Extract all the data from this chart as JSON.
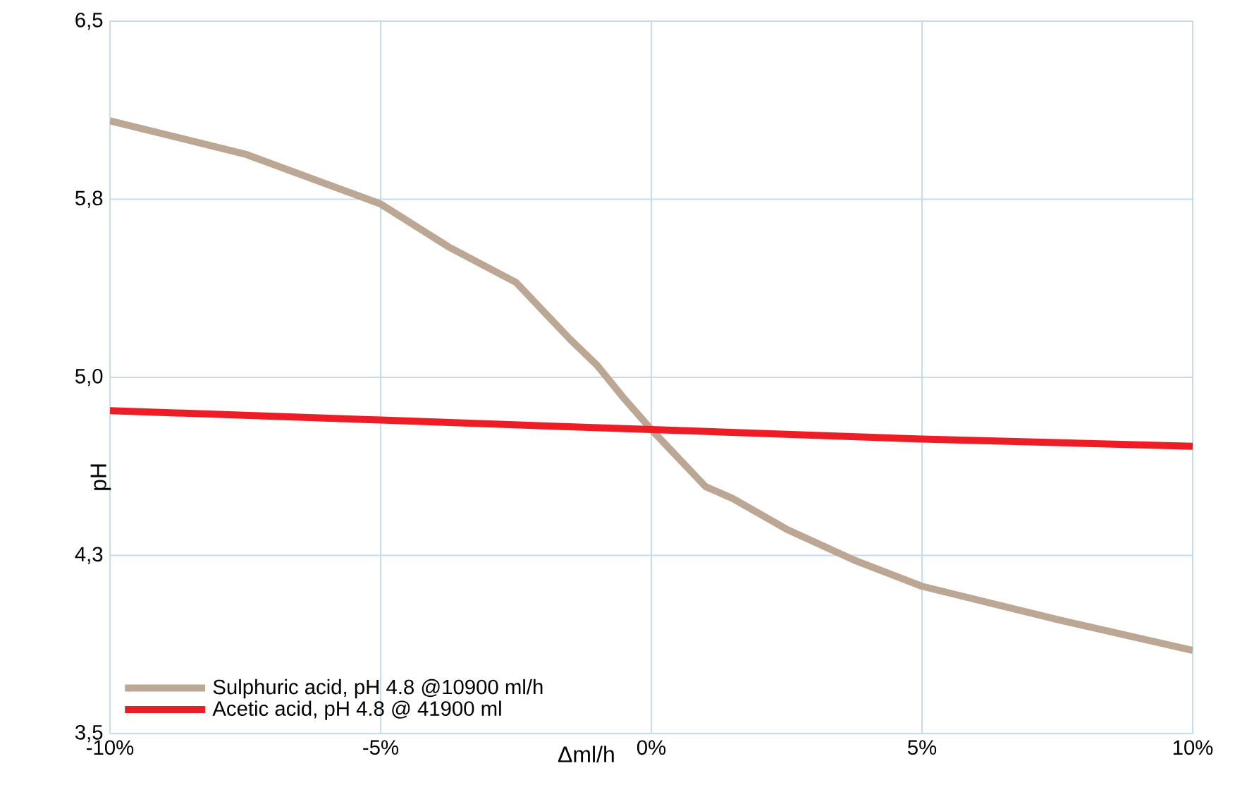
{
  "chart_data": {
    "type": "line",
    "xlabel": "Δml/h",
    "ylabel": "pH",
    "xlim": [
      -10,
      10
    ],
    "ylim": [
      3.5,
      6.5
    ],
    "xticks": [
      {
        "value": -10,
        "label": "-10%"
      },
      {
        "value": -5,
        "label": "-5%"
      },
      {
        "value": 0,
        "label": "0%"
      },
      {
        "value": 5,
        "label": "5%"
      },
      {
        "value": 10,
        "label": "10%"
      }
    ],
    "yticks": [
      {
        "value": 3.5,
        "label": "3,5"
      },
      {
        "value": 4.25,
        "label": "4,3"
      },
      {
        "value": 5.0,
        "label": "5,0"
      },
      {
        "value": 5.75,
        "label": "5,8"
      },
      {
        "value": 6.5,
        "label": "6,5"
      }
    ],
    "grid": true,
    "legend": "bottom left",
    "marker": "none",
    "line_style": "solid",
    "series": [
      {
        "name": "Sulphuric acid, pH 4.8 @10900 ml/h",
        "color": "#bba793",
        "x": [
          -10,
          -7.5,
          -5,
          -3.75,
          -2.5,
          -1.5,
          -1,
          -0.5,
          0,
          0.5,
          1,
          1.5,
          2.5,
          3.75,
          5,
          7.5,
          10
        ],
        "values": [
          6.08,
          5.94,
          5.73,
          5.55,
          5.4,
          5.16,
          5.05,
          4.91,
          4.78,
          4.66,
          4.54,
          4.49,
          4.36,
          4.23,
          4.12,
          3.98,
          3.85
        ]
      },
      {
        "name": "Acetic acid, pH 4.8 @ 41900 ml",
        "color": "#ee1c25",
        "x": [
          -10,
          -5,
          0,
          5,
          10
        ],
        "values": [
          4.86,
          4.82,
          4.78,
          4.74,
          4.71
        ]
      }
    ]
  }
}
